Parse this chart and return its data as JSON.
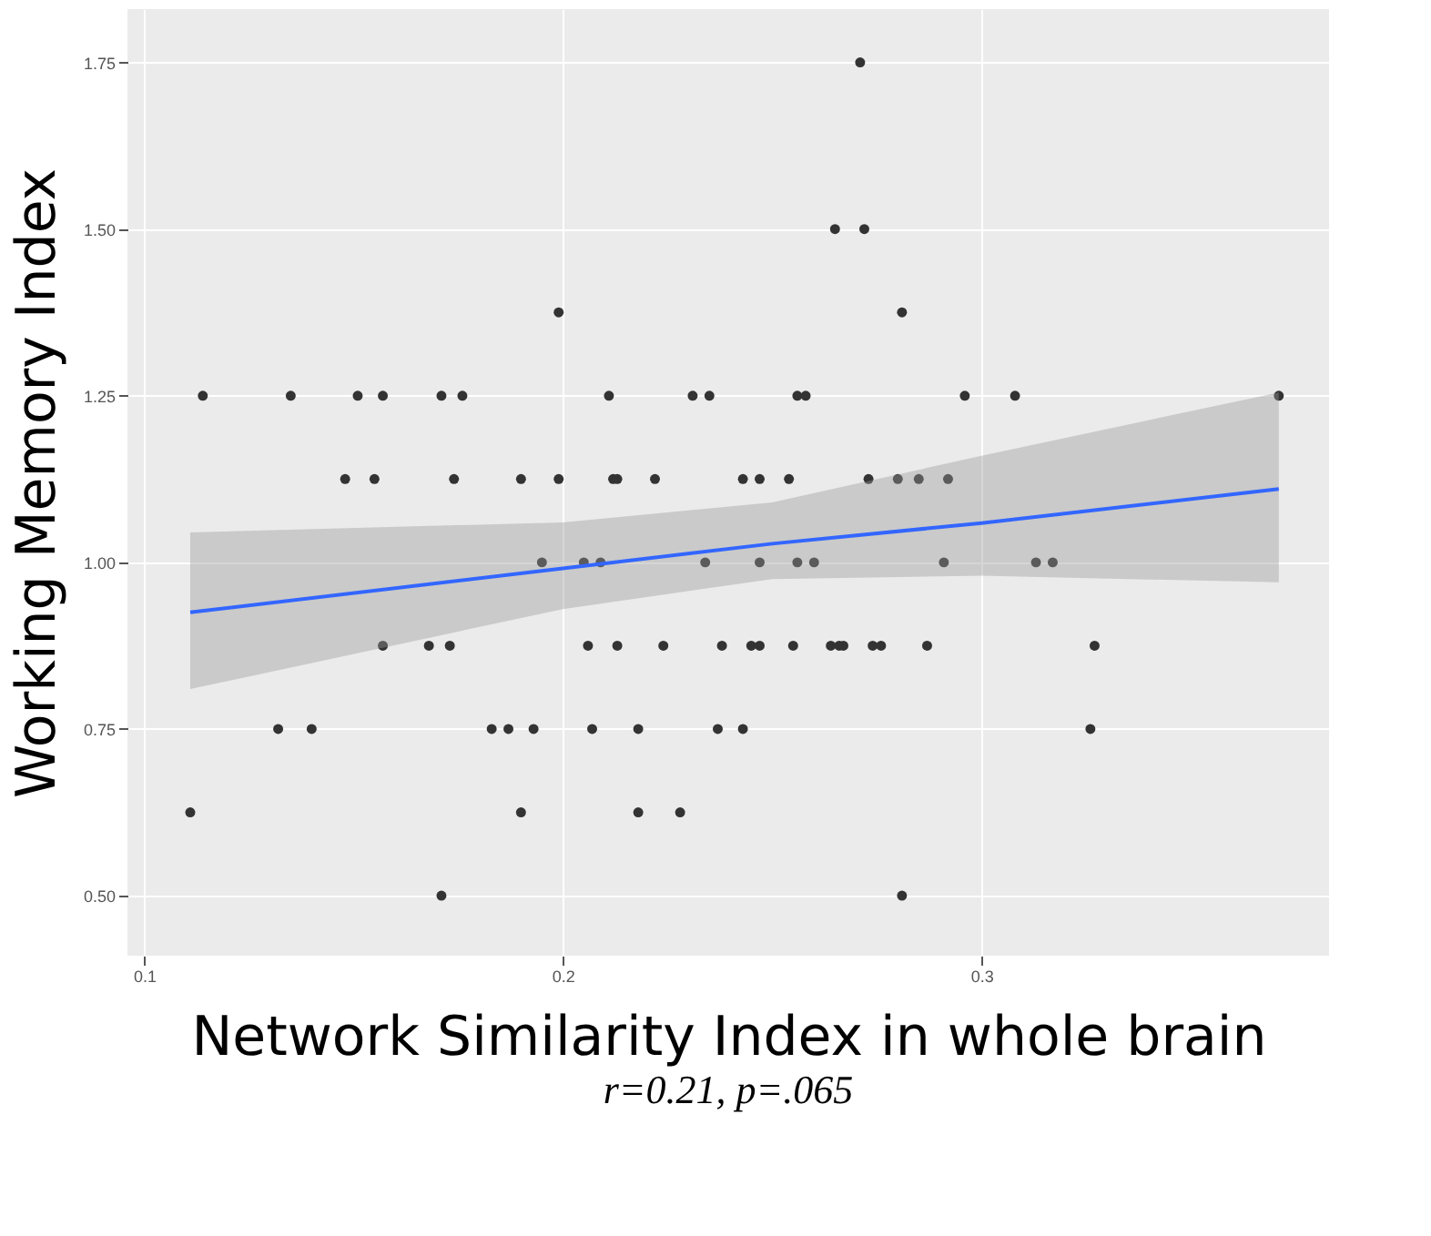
{
  "chart_data": {
    "type": "scatter",
    "xlabel": "Network Similarity Index in whole brain",
    "ylabel": "Working Memory Index",
    "annotations": [
      "r=0.21, p=.065"
    ],
    "xlim": [
      0.096,
      0.383
    ],
    "xticks": [
      0.1,
      0.2,
      0.3
    ],
    "ylim": [
      0.41,
      1.83
    ],
    "yticks": [
      {
        "value": 0.5,
        "label": "0.50"
      },
      {
        "value": 0.75,
        "label": "0.75"
      },
      {
        "value": 1.0,
        "label": "1.00"
      },
      {
        "value": 1.25,
        "label": "1.25"
      },
      {
        "value": 1.5,
        "label": "1.50"
      },
      {
        "value": 1.75,
        "label": "1.75"
      }
    ],
    "grid": true,
    "series": [
      {
        "type": "scatter",
        "marker": "circle",
        "color": "#333333",
        "x": [
          0.271,
          0.265,
          0.272,
          0.199,
          0.281,
          0.114,
          0.135,
          0.151,
          0.157,
          0.171,
          0.176,
          0.211,
          0.231,
          0.235,
          0.256,
          0.258,
          0.296,
          0.308,
          0.371,
          0.148,
          0.155,
          0.174,
          0.19,
          0.199,
          0.212,
          0.213,
          0.222,
          0.243,
          0.247,
          0.254,
          0.273,
          0.28,
          0.285,
          0.292,
          0.195,
          0.205,
          0.209,
          0.234,
          0.247,
          0.256,
          0.26,
          0.291,
          0.313,
          0.317,
          0.157,
          0.168,
          0.173,
          0.206,
          0.213,
          0.224,
          0.238,
          0.245,
          0.247,
          0.255,
          0.264,
          0.266,
          0.267,
          0.274,
          0.276,
          0.287,
          0.327,
          0.132,
          0.14,
          0.183,
          0.187,
          0.193,
          0.207,
          0.218,
          0.237,
          0.243,
          0.326,
          0.111,
          0.19,
          0.218,
          0.228,
          0.171,
          0.281
        ],
        "values": [
          1.75,
          1.5,
          1.5,
          1.375,
          1.375,
          1.25,
          1.25,
          1.25,
          1.25,
          1.25,
          1.25,
          1.25,
          1.25,
          1.25,
          1.25,
          1.25,
          1.25,
          1.25,
          1.25,
          1.125,
          1.125,
          1.125,
          1.125,
          1.125,
          1.125,
          1.125,
          1.125,
          1.125,
          1.125,
          1.125,
          1.125,
          1.125,
          1.125,
          1.125,
          1.0,
          1.0,
          1.0,
          1.0,
          1.0,
          1.0,
          1.0,
          1.0,
          1.0,
          1.0,
          0.875,
          0.875,
          0.875,
          0.875,
          0.875,
          0.875,
          0.875,
          0.875,
          0.875,
          0.875,
          0.875,
          0.875,
          0.875,
          0.875,
          0.875,
          0.875,
          0.875,
          0.75,
          0.75,
          0.75,
          0.75,
          0.75,
          0.75,
          0.75,
          0.75,
          0.75,
          0.75,
          0.625,
          0.625,
          0.625,
          0.625,
          0.5,
          0.5
        ]
      },
      {
        "type": "line",
        "color": "#3366ff",
        "x": [
          0.111,
          0.2,
          0.25,
          0.3,
          0.371
        ],
        "values": [
          0.925,
          0.991,
          1.028,
          1.059,
          1.11
        ],
        "lower": [
          0.81,
          0.93,
          0.975,
          0.98,
          0.97
        ],
        "upper": [
          1.045,
          1.06,
          1.09,
          1.16,
          1.255
        ]
      }
    ]
  }
}
